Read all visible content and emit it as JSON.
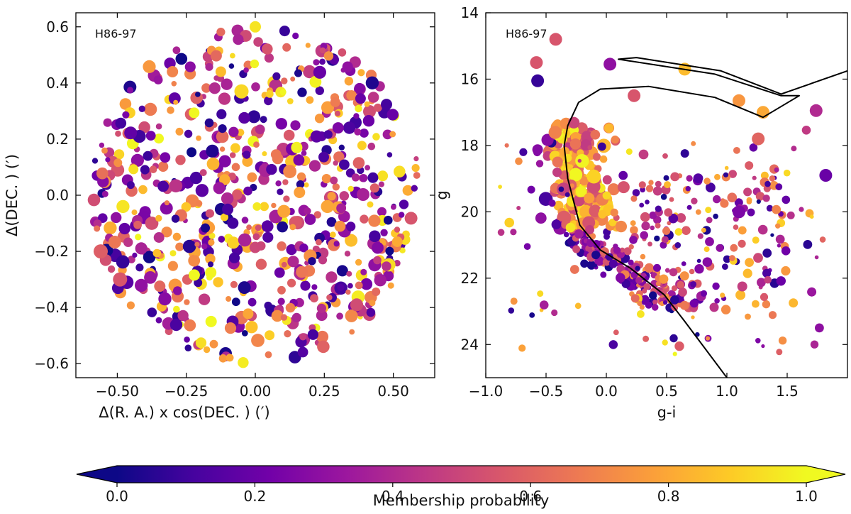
{
  "chart_data": [
    {
      "type": "scatter",
      "panel": "left",
      "cluster_label": "H86-97",
      "xlabel": "Δ(R. A.) x cos(DEC. ) (′)",
      "ylabel": "Δ(DEC. ) (′)",
      "xlim": [
        -0.65,
        0.65
      ],
      "ylim": [
        -0.65,
        0.65
      ],
      "xticks": [
        -0.5,
        -0.25,
        0.0,
        0.25,
        0.5
      ],
      "xtick_labels": [
        "−0.50",
        "−0.25",
        "0.00",
        "0.25",
        "0.50"
      ],
      "yticks": [
        -0.6,
        -0.4,
        -0.2,
        0.0,
        0.2,
        0.4,
        0.6
      ],
      "ytick_labels": [
        "−0.6",
        "−0.4",
        "−0.2",
        "0.0",
        "0.2",
        "0.4",
        "0.6"
      ],
      "field_radius": 0.6,
      "n_points": 700,
      "series": [
        {
          "name": "stars (sample)",
          "points": [
            {
              "x": -0.05,
              "y": 0.37,
              "p": 0.92
            },
            {
              "x": -0.49,
              "y": -0.3,
              "p": 0.55
            },
            {
              "x": -0.56,
              "y": -0.2,
              "p": 0.58
            },
            {
              "x": 0.15,
              "y": 0.17,
              "p": 0.98
            },
            {
              "x": -0.1,
              "y": -0.05,
              "p": 0.12
            },
            {
              "x": 0.3,
              "y": 0.24,
              "p": 0.25
            },
            {
              "x": -0.16,
              "y": -0.45,
              "p": 1.0
            },
            {
              "x": 0.0,
              "y": 0.6,
              "p": 0.95
            },
            {
              "x": -0.3,
              "y": 0.44,
              "p": 0.7
            },
            {
              "x": 0.16,
              "y": 0.01,
              "p": 0.78
            }
          ]
        }
      ]
    },
    {
      "type": "scatter",
      "panel": "right",
      "cluster_label": "H86-97",
      "xlabel": "g-i",
      "ylabel": "g",
      "xlim": [
        -1.0,
        2.0
      ],
      "ylim": [
        25,
        14
      ],
      "xticks": [
        -1.0,
        -0.5,
        0.0,
        0.5,
        1.0,
        1.5
      ],
      "xtick_labels": [
        "−1.0",
        "−0.5",
        "0.0",
        "0.5",
        "1.0",
        "1.5"
      ],
      "yticks": [
        14,
        16,
        18,
        20,
        22,
        24
      ],
      "ytick_labels": [
        "14",
        "16",
        "18",
        "20",
        "22",
        "24"
      ],
      "n_points": 650,
      "series": [
        {
          "name": "stars (sample)",
          "points": [
            {
              "x": -0.42,
              "y": 14.8,
              "p": 0.55
            },
            {
              "x": -0.58,
              "y": 15.5,
              "p": 0.55
            },
            {
              "x": -0.57,
              "y": 16.05,
              "p": 0.08
            },
            {
              "x": 0.03,
              "y": 15.55,
              "p": 0.3
            },
            {
              "x": 0.65,
              "y": 15.7,
              "p": 0.85
            },
            {
              "x": 0.23,
              "y": 16.5,
              "p": 0.55
            },
            {
              "x": 1.1,
              "y": 16.65,
              "p": 0.75
            },
            {
              "x": 1.3,
              "y": 17.0,
              "p": 0.8
            },
            {
              "x": 1.74,
              "y": 16.95,
              "p": 0.4
            },
            {
              "x": 1.26,
              "y": 17.8,
              "p": 0.6
            },
            {
              "x": 1.82,
              "y": 18.9,
              "p": 0.2
            },
            {
              "x": 1.1,
              "y": 20.0,
              "p": 0.25
            }
          ]
        },
        {
          "name": "isochrone",
          "points": [
            {
              "x": 1.0,
              "y": 25.0
            },
            {
              "x": 0.65,
              "y": 23.3
            },
            {
              "x": 0.48,
              "y": 22.5
            },
            {
              "x": 0.2,
              "y": 21.7
            },
            {
              "x": -0.05,
              "y": 21.15
            },
            {
              "x": -0.22,
              "y": 20.4
            },
            {
              "x": -0.32,
              "y": 19.0
            },
            {
              "x": -0.35,
              "y": 18.0
            },
            {
              "x": -0.32,
              "y": 17.4
            },
            {
              "x": -0.23,
              "y": 16.7
            },
            {
              "x": -0.05,
              "y": 16.3
            },
            {
              "x": 0.35,
              "y": 16.22
            },
            {
              "x": 0.9,
              "y": 16.55
            },
            {
              "x": 1.3,
              "y": 17.15
            },
            {
              "x": 1.6,
              "y": 16.5
            },
            {
              "x": 1.45,
              "y": 16.5
            },
            {
              "x": 0.9,
              "y": 15.85
            },
            {
              "x": 0.1,
              "y": 15.4
            },
            {
              "x": 0.25,
              "y": 15.35
            },
            {
              "x": 0.95,
              "y": 15.75
            },
            {
              "x": 1.45,
              "y": 16.45
            },
            {
              "x": 2.0,
              "y": 15.75
            }
          ]
        }
      ]
    }
  ],
  "colorbar": {
    "label": "Membership probability",
    "min": 0.0,
    "max": 1.0,
    "colormap": "plasma",
    "ticks": [
      0.0,
      0.2,
      0.4,
      0.6,
      0.8,
      1.0
    ],
    "tick_labels": [
      "0.0",
      "0.2",
      "0.4",
      "0.6",
      "0.8",
      "1.0"
    ],
    "extend": "both"
  },
  "colormap_stops": [
    "#0d0887",
    "#46039f",
    "#7201a8",
    "#9c179e",
    "#bd3786",
    "#d8576b",
    "#ed7953",
    "#fb9f3a",
    "#fdca26",
    "#f0f921"
  ]
}
